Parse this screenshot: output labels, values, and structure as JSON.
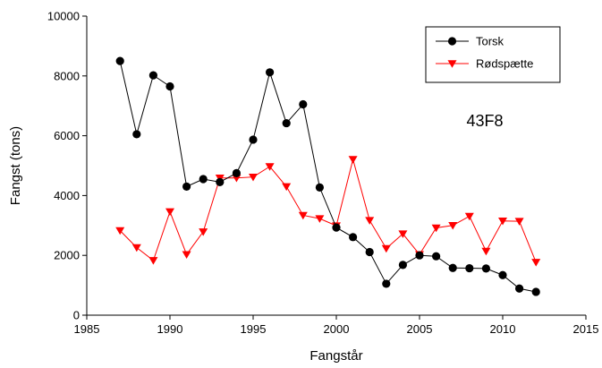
{
  "chart_data": {
    "type": "line",
    "title": "",
    "xlabel": "Fangstår",
    "ylabel": "Fangst (tons)",
    "xlim": [
      1985,
      2015
    ],
    "ylim": [
      0,
      10000
    ],
    "xticks": [
      1985,
      1990,
      1995,
      2000,
      2005,
      2010,
      2015
    ],
    "yticks": [
      0,
      2000,
      4000,
      6000,
      8000,
      10000
    ],
    "x_tick_labels": [
      "1985",
      "1990",
      "1995",
      "2000",
      "2005",
      "2010",
      "2015"
    ],
    "y_tick_labels": [
      "0",
      "2000",
      "4000",
      "6000",
      "8000",
      "10000"
    ],
    "grid": false,
    "legend_position": "top-right",
    "annotation": "43F8",
    "series": [
      {
        "name": "Torsk",
        "color": "#000000",
        "marker": "circle",
        "x": [
          1987,
          1988,
          1989,
          1990,
          1991,
          1992,
          1993,
          1994,
          1995,
          1996,
          1997,
          1998,
          1999,
          2000,
          2001,
          2002,
          2003,
          2004,
          2005,
          2006,
          2007,
          2008,
          2009,
          2010,
          2011,
          2012
        ],
        "y": [
          8500,
          6050,
          8020,
          7650,
          4300,
          4550,
          4450,
          4750,
          5870,
          8120,
          6420,
          7050,
          4270,
          2930,
          2610,
          2110,
          1050,
          1680,
          2000,
          1970,
          1580,
          1570,
          1560,
          1340,
          890,
          780
        ]
      },
      {
        "name": "Rødspætte",
        "color": "#ff0000",
        "marker": "triangle-down",
        "x": [
          1987,
          1988,
          1989,
          1990,
          1991,
          1992,
          1993,
          1994,
          1995,
          1996,
          1997,
          1998,
          1999,
          2000,
          2001,
          2002,
          2003,
          2004,
          2005,
          2006,
          2007,
          2008,
          2009,
          2010,
          2011,
          2012
        ],
        "y": [
          2830,
          2260,
          1830,
          3460,
          2030,
          2790,
          4590,
          4590,
          4620,
          4970,
          4300,
          3340,
          3230,
          2990,
          5210,
          3170,
          2230,
          2720,
          2030,
          2920,
          3000,
          3310,
          2140,
          3150,
          3140,
          1770
        ]
      }
    ]
  }
}
